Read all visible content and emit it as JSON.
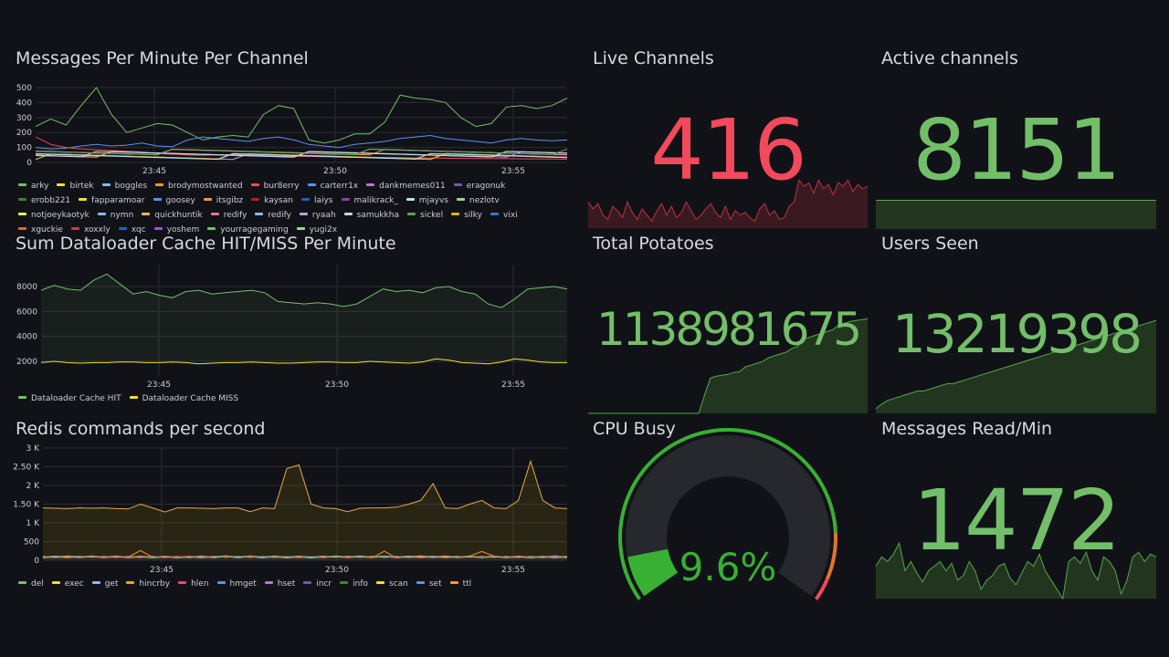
{
  "panels": {
    "messages": {
      "title": "Messages Per Minute Per Channel",
      "y_ticks": [
        "500",
        "400",
        "300",
        "200",
        "100",
        "0"
      ],
      "x_ticks": [
        "23:45",
        "23:50",
        "23:55"
      ],
      "legend": [
        {
          "label": "arky",
          "color": "#73bf69"
        },
        {
          "label": "birtek",
          "color": "#fade2a"
        },
        {
          "label": "boggles",
          "color": "#8ab8ff"
        },
        {
          "label": "brodymostwanted",
          "color": "#ff9830"
        },
        {
          "label": "bur8erry",
          "color": "#f2495c"
        },
        {
          "label": "carterr1x",
          "color": "#5794f2"
        },
        {
          "label": "dankmemes011",
          "color": "#b877d9"
        },
        {
          "label": "eragonuk",
          "color": "#705da0"
        },
        {
          "label": "erobb221",
          "color": "#37872d"
        },
        {
          "label": "fapparamoar",
          "color": "#fade2a"
        },
        {
          "label": "goosey",
          "color": "#5794f2"
        },
        {
          "label": "itsgibz",
          "color": "#ff9830"
        },
        {
          "label": "kaysan",
          "color": "#c4162a"
        },
        {
          "label": "laiys",
          "color": "#1f60c4"
        },
        {
          "label": "malikrack_",
          "color": "#8f3bb8"
        },
        {
          "label": "mjayvs",
          "color": "#badff4"
        },
        {
          "label": "nezlotv",
          "color": "#96d98d"
        },
        {
          "label": "notjoeykaotyk",
          "color": "#ffee52"
        },
        {
          "label": "nymn",
          "color": "#8ab8ff"
        },
        {
          "label": "quickhuntik",
          "color": "#ffb357"
        },
        {
          "label": "redify",
          "color": "#ff7383"
        },
        {
          "label": "redify",
          "color": "#8ab8ff"
        },
        {
          "label": "ryaah",
          "color": "#ca95e5"
        },
        {
          "label": "samukkha",
          "color": "#c0d8ff"
        },
        {
          "label": "sickel",
          "color": "#56a64b"
        },
        {
          "label": "silky",
          "color": "#e0b400"
        },
        {
          "label": "vixi",
          "color": "#3274d9"
        },
        {
          "label": "xguckie",
          "color": "#fa6400"
        },
        {
          "label": "xoxxly",
          "color": "#e02f44"
        },
        {
          "label": "xqc",
          "color": "#1f60c4"
        },
        {
          "label": "yoshem",
          "color": "#a352cc"
        },
        {
          "label": "yourragegaming",
          "color": "#73bf69"
        },
        {
          "label": "yugi2x",
          "color": "#96d98d"
        }
      ]
    },
    "dataloader": {
      "title": "Sum Dataloader Cache HIT/MISS Per Minute",
      "y_ticks": [
        "8000",
        "6000",
        "4000",
        "2000"
      ],
      "x_ticks": [
        "23:45",
        "23:50",
        "23:55"
      ],
      "legend": [
        {
          "label": "Dataloader Cache HIT",
          "color": "#73bf69"
        },
        {
          "label": "Dataloader Cache MISS",
          "color": "#fade2a"
        }
      ]
    },
    "redis": {
      "title": "Redis commands per second",
      "y_ticks": [
        "3 K",
        "2.50 K",
        "2 K",
        "1.50 K",
        "1 K",
        "500",
        "0"
      ],
      "x_ticks": [
        "23:45",
        "23:50",
        "23:55"
      ],
      "legend": [
        {
          "label": "del",
          "color": "#73bf69"
        },
        {
          "label": "exec",
          "color": "#fade2a"
        },
        {
          "label": "get",
          "color": "#8ab8ff"
        },
        {
          "label": "hincrby",
          "color": "#ff9830"
        },
        {
          "label": "hlen",
          "color": "#f2495c"
        },
        {
          "label": "hmget",
          "color": "#5794f2"
        },
        {
          "label": "hset",
          "color": "#b877d9"
        },
        {
          "label": "incr",
          "color": "#705da0"
        },
        {
          "label": "info",
          "color": "#37872d"
        },
        {
          "label": "scan",
          "color": "#fade2a"
        },
        {
          "label": "set",
          "color": "#5794f2"
        },
        {
          "label": "ttl",
          "color": "#ff9830"
        }
      ]
    },
    "live_channels": {
      "title": "Live Channels",
      "value": "416",
      "color": "#f2495c",
      "bg": "#3a1a20",
      "line": "#b9333f"
    },
    "active_channels": {
      "title": "Active channels",
      "value": "8151",
      "color": "#73bf69",
      "bg": "#22361f",
      "line": "#56a64b"
    },
    "total_potatoes": {
      "title": "Total Potatoes",
      "value": "1138981675",
      "color": "#73bf69",
      "bg": "#22361f",
      "line": "#56a64b"
    },
    "users_seen": {
      "title": "Users Seen",
      "value": "13219398",
      "color": "#73bf69",
      "bg": "#22361f",
      "line": "#56a64b"
    },
    "cpu_busy": {
      "title": "CPU Busy",
      "value": "9.6%",
      "percent": 9.6,
      "color": "#37b034"
    },
    "messages_read": {
      "title": "Messages Read/Min",
      "value": "1472",
      "color": "#73bf69",
      "bg": "#22361f",
      "line": "#56a64b"
    }
  }
}
